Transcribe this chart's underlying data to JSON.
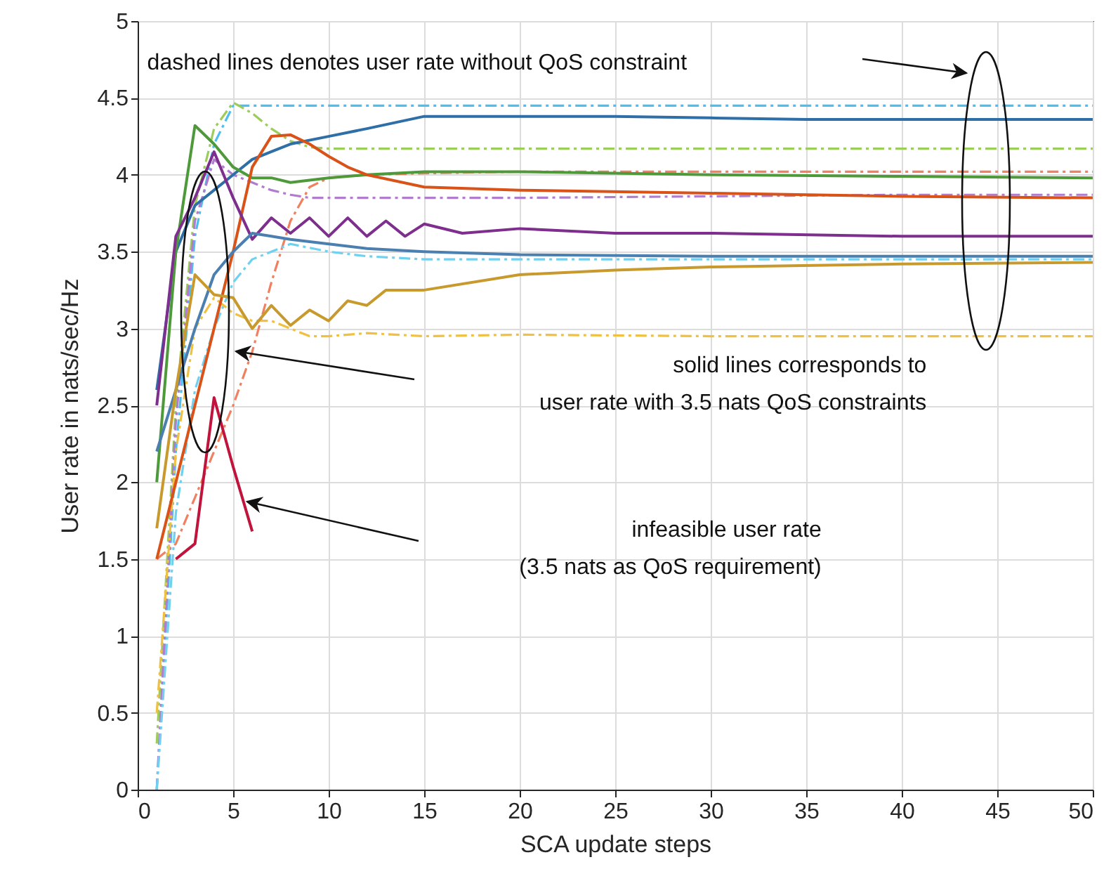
{
  "chart_data": {
    "type": "line",
    "xlabel": "SCA update steps",
    "ylabel": "User rate in nats/sec/Hz",
    "xlim": [
      0,
      50
    ],
    "xticks": [
      0,
      5,
      10,
      15,
      20,
      25,
      30,
      35,
      40,
      45,
      50
    ],
    "ylim": [
      0,
      5
    ],
    "yticks": [
      0,
      0.5,
      1,
      1.5,
      2,
      2.5,
      3,
      3.5,
      4,
      4.5,
      5
    ],
    "grid": true,
    "annotations": [
      "dashed lines denotes user rate without QoS constraint",
      "solid lines corresponds to\nuser rate with 3.5 nats QoS constraints",
      "infeasible user rate\n(3.5 nats as QoS requirement)"
    ],
    "series": [
      {
        "color": "#4dbeee",
        "line_style": "dashed",
        "x": [
          1,
          2,
          3,
          4,
          5,
          6,
          8,
          10,
          15,
          20,
          30,
          40,
          50
        ],
        "values": [
          0,
          2.2,
          3.6,
          4.2,
          4.45,
          4.45,
          4.45,
          4.45,
          4.45,
          4.45,
          4.45,
          4.45,
          4.45
        ]
      },
      {
        "color": "#9ccc5a",
        "line_style": "dashed",
        "x": [
          1,
          2,
          3,
          4,
          5,
          6,
          7,
          8,
          9,
          10,
          15,
          20,
          30,
          40,
          50
        ],
        "values": [
          0.3,
          2.5,
          3.8,
          4.3,
          4.47,
          4.4,
          4.3,
          4.22,
          4.18,
          4.17,
          4.17,
          4.17,
          4.17,
          4.17,
          4.17
        ]
      },
      {
        "color": "#f08060",
        "line_style": "dashed",
        "x": [
          1,
          2,
          3,
          4,
          5,
          6,
          7,
          8,
          9,
          10,
          12,
          15,
          20,
          30,
          40,
          50
        ],
        "values": [
          1.5,
          1.6,
          1.9,
          2.2,
          2.5,
          2.85,
          3.3,
          3.7,
          3.92,
          3.98,
          4.0,
          4.01,
          4.02,
          4.02,
          4.02,
          4.02
        ]
      },
      {
        "color": "#b07cd0",
        "line_style": "dashed",
        "x": [
          1,
          2,
          3,
          4,
          5,
          6,
          7,
          8,
          9,
          10,
          15,
          20,
          30,
          40,
          50
        ],
        "values": [
          0,
          2.4,
          3.7,
          4.1,
          4.0,
          3.95,
          3.9,
          3.87,
          3.85,
          3.85,
          3.85,
          3.85,
          3.86,
          3.87,
          3.87
        ]
      },
      {
        "color": "#6fd0f0",
        "line_style": "dashed",
        "x": [
          1,
          2,
          3,
          4,
          5,
          6,
          7,
          8,
          10,
          12,
          15,
          20,
          30,
          40,
          50
        ],
        "values": [
          0,
          1.8,
          2.6,
          3.0,
          3.3,
          3.45,
          3.5,
          3.55,
          3.5,
          3.47,
          3.45,
          3.45,
          3.45,
          3.45,
          3.45
        ]
      },
      {
        "color": "#f0c040",
        "line_style": "dashed",
        "x": [
          1,
          2,
          3,
          4,
          5,
          6,
          7,
          8,
          9,
          10,
          12,
          15,
          20,
          30,
          40,
          50
        ],
        "values": [
          0.5,
          2.2,
          3.0,
          3.2,
          3.1,
          3.05,
          3.05,
          3.0,
          2.95,
          2.95,
          2.97,
          2.95,
          2.96,
          2.95,
          2.95,
          2.95
        ]
      },
      {
        "color": "#2f6fa8",
        "line_style": "solid",
        "x": [
          1,
          2,
          3,
          4,
          5,
          6,
          7,
          8,
          10,
          12,
          15,
          20,
          25,
          30,
          35,
          40,
          45,
          50
        ],
        "values": [
          2.6,
          3.5,
          3.8,
          3.9,
          4.0,
          4.1,
          4.15,
          4.2,
          4.25,
          4.3,
          4.38,
          4.38,
          4.38,
          4.37,
          4.36,
          4.36,
          4.36,
          4.36
        ]
      },
      {
        "color": "#4e9a3a",
        "line_style": "solid",
        "x": [
          1,
          2,
          3,
          4,
          5,
          6,
          7,
          8,
          10,
          12,
          15,
          20,
          30,
          40,
          50
        ],
        "values": [
          2.0,
          3.5,
          4.32,
          4.2,
          4.05,
          3.98,
          3.98,
          3.95,
          3.98,
          4.0,
          4.02,
          4.02,
          4.0,
          3.99,
          3.98
        ]
      },
      {
        "color": "#d95319",
        "line_style": "solid",
        "x": [
          1,
          2,
          3,
          4,
          5,
          6,
          7,
          8,
          9,
          10,
          11,
          12,
          15,
          20,
          30,
          40,
          50
        ],
        "values": [
          1.5,
          2.0,
          2.5,
          3.0,
          3.5,
          4.05,
          4.25,
          4.26,
          4.2,
          4.12,
          4.05,
          4.0,
          3.92,
          3.9,
          3.88,
          3.86,
          3.85
        ]
      },
      {
        "color": "#7e2f8e",
        "line_style": "solid",
        "x": [
          1,
          2,
          3,
          4,
          5,
          6,
          7,
          8,
          9,
          10,
          11,
          12,
          13,
          14,
          15,
          17,
          20,
          25,
          30,
          40,
          50
        ],
        "values": [
          2.5,
          3.6,
          3.85,
          4.15,
          3.85,
          3.58,
          3.72,
          3.62,
          3.72,
          3.6,
          3.72,
          3.6,
          3.7,
          3.6,
          3.68,
          3.62,
          3.65,
          3.62,
          3.62,
          3.6,
          3.6
        ]
      },
      {
        "color": "#4a7fb0",
        "line_style": "solid",
        "x": [
          1,
          2,
          3,
          4,
          5,
          6,
          7,
          8,
          10,
          12,
          15,
          20,
          30,
          40,
          50
        ],
        "values": [
          2.2,
          2.6,
          3.0,
          3.35,
          3.5,
          3.62,
          3.6,
          3.58,
          3.55,
          3.52,
          3.5,
          3.48,
          3.47,
          3.47,
          3.47
        ]
      },
      {
        "color": "#c89a2e",
        "line_style": "solid",
        "x": [
          1,
          2,
          3,
          4,
          5,
          6,
          7,
          8,
          9,
          10,
          11,
          12,
          13,
          15,
          20,
          25,
          30,
          40,
          50
        ],
        "values": [
          1.7,
          2.6,
          3.35,
          3.22,
          3.2,
          3.0,
          3.15,
          3.02,
          3.12,
          3.05,
          3.18,
          3.15,
          3.25,
          3.25,
          3.35,
          3.38,
          3.4,
          3.42,
          3.43
        ]
      },
      {
        "color": "#c0143c",
        "line_style": "solid",
        "x": [
          2,
          3,
          4,
          5,
          6
        ],
        "values": [
          1.5,
          1.6,
          2.55,
          2.1,
          1.68
        ]
      }
    ]
  }
}
